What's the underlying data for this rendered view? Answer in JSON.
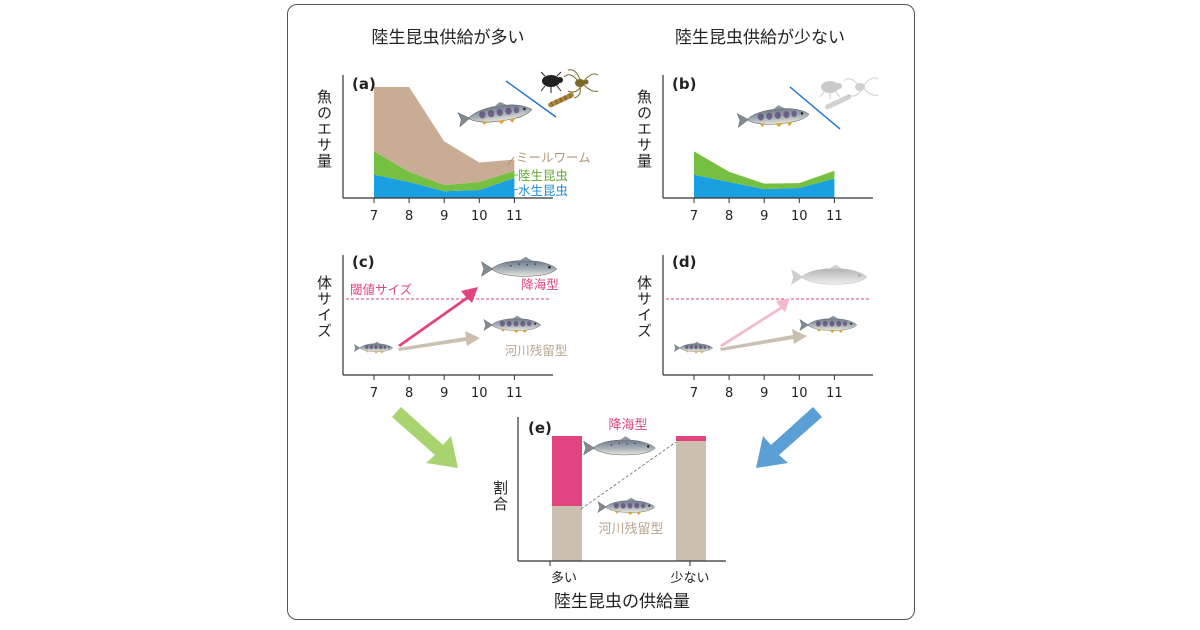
{
  "page": {
    "left_condition": "陸生昆虫供給が多い",
    "right_condition": "陸生昆虫供給が少ない"
  },
  "colors": {
    "mealworm": "#c8ad94",
    "terrestrial": "#76c041",
    "aquatic": "#1a9fe0",
    "threshold": "#e0457f",
    "sea_run": "#e0457f",
    "resident": "#cbbfaf",
    "arrow_green": "#a9d36e",
    "arrow_blue": "#5b9fd4",
    "fish_faded": "#b8b8b8"
  },
  "chart_data": [
    {
      "panel": "(a)",
      "type": "area",
      "stacked": true,
      "ylabel": "魚のエサ量",
      "x": [
        7,
        8,
        9,
        10,
        11
      ],
      "xlim": [
        7,
        11.9
      ],
      "ylim": [
        0,
        5
      ],
      "series": [
        {
          "name": "水生昆虫",
          "color": "aquatic",
          "values": [
            1.05,
            0.72,
            0.3,
            0.36,
            0.9
          ]
        },
        {
          "name": "陸生昆虫",
          "color": "terrestrial",
          "values": [
            1.05,
            0.46,
            0.28,
            0.36,
            0.33
          ]
        },
        {
          "name": "ミールワーム",
          "color": "mealworm",
          "values": [
            2.9,
            3.82,
            1.97,
            0.88,
            0.5
          ]
        }
      ]
    },
    {
      "panel": "(b)",
      "type": "area",
      "stacked": true,
      "ylabel": "魚のエサ量",
      "x": [
        7,
        8,
        9,
        10,
        11
      ],
      "xlim": [
        7,
        11.9
      ],
      "ylim": [
        0,
        5
      ],
      "series": [
        {
          "name": "水生昆虫",
          "color": "aquatic",
          "values": [
            1.05,
            0.72,
            0.4,
            0.45,
            0.88
          ]
        },
        {
          "name": "陸生昆虫",
          "color": "terrestrial",
          "values": [
            1.05,
            0.46,
            0.25,
            0.22,
            0.35
          ]
        }
      ]
    },
    {
      "panel": "(c)",
      "type": "diagram",
      "ylabel": "体サイズ",
      "x_ticks": [
        7,
        8,
        9,
        10,
        11
      ],
      "threshold_label": "閾値サイズ",
      "outcomes": [
        "降海型",
        "河川残留型"
      ]
    },
    {
      "panel": "(d)",
      "type": "diagram",
      "ylabel": "体サイズ",
      "x_ticks": [
        7,
        8,
        9,
        10,
        11
      ]
    },
    {
      "panel": "(e)",
      "type": "bar",
      "stacked": true,
      "xlabel": "陸生昆虫の供給量",
      "ylabel": "割合",
      "categories": [
        "多い",
        "少ない"
      ],
      "ylim": [
        0,
        1
      ],
      "series": [
        {
          "name": "河川残留型",
          "color": "resident",
          "values": [
            0.44,
            0.96
          ]
        },
        {
          "name": "降海型",
          "color": "sea_run",
          "values": [
            0.56,
            0.04
          ]
        }
      ]
    }
  ]
}
